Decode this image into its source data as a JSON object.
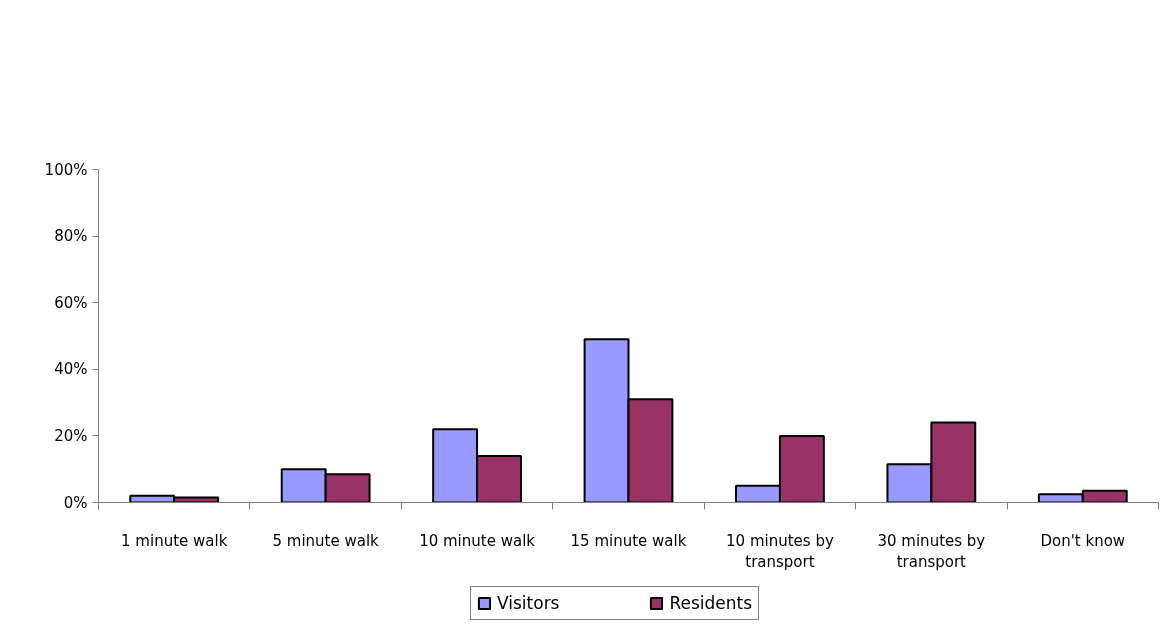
{
  "chart_data": {
    "type": "bar",
    "categories": [
      "1 minute walk",
      "5 minute walk",
      "10 minute walk",
      "15 minute walk",
      "10 minutes by transport",
      "30 minutes by transport",
      "Don't know"
    ],
    "series": [
      {
        "name": "Visitors",
        "color": "#9999ff",
        "values": [
          2,
          10,
          22,
          49,
          5,
          11.5,
          2.5
        ]
      },
      {
        "name": "Residents",
        "color": "#993366",
        "values": [
          1.5,
          8.5,
          14,
          31,
          20,
          24,
          3.5
        ]
      }
    ],
    "ylim": [
      0,
      100
    ],
    "yticks": [
      {
        "value": 0,
        "label": "0%"
      },
      {
        "value": 20,
        "label": "20%"
      },
      {
        "value": 40,
        "label": "40%"
      },
      {
        "value": 60,
        "label": "60%"
      },
      {
        "value": 80,
        "label": "80%"
      },
      {
        "value": 100,
        "label": "100%"
      }
    ],
    "legend": "bottom"
  }
}
